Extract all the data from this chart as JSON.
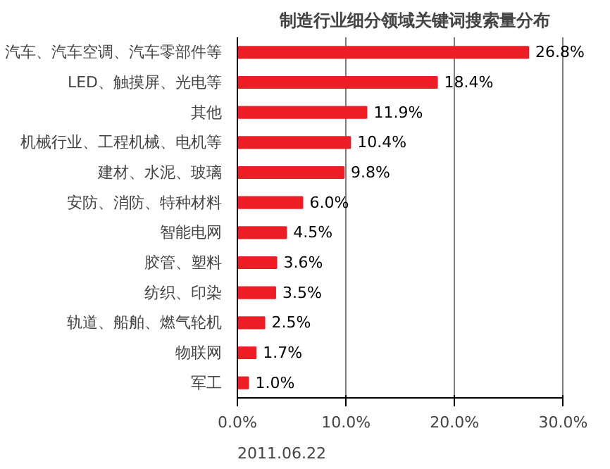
{
  "chart_data": {
    "type": "bar",
    "orientation": "horizontal",
    "title": "制造行业细分领域关键词搜索量分布",
    "categories": [
      "汽车、汽车空调、汽车零部件等",
      "LED、触摸屏、光电等",
      "其他",
      "机械行业、工程机械、电机等",
      "建材、水泥、玻璃",
      "安防、消防、特种材料",
      "智能电网",
      "胶管、塑料",
      "纺织、印染",
      "轨道、船舶、燃气轮机",
      "物联网",
      "军工"
    ],
    "values": [
      26.8,
      18.4,
      11.9,
      10.4,
      9.8,
      6.0,
      4.5,
      3.6,
      3.5,
      2.5,
      1.7,
      1.0
    ],
    "value_labels": [
      "26.8%",
      "18.4%",
      "11.9%",
      "10.4%",
      "9.8%",
      "6.0%",
      "4.5%",
      "3.6%",
      "3.5%",
      "2.5%",
      "1.7%",
      "1.0%"
    ],
    "color": "#ee1c24",
    "xlim": [
      0,
      30
    ],
    "xticks": [
      {
        "value": 0,
        "label": "0.0%"
      },
      {
        "value": 10,
        "label": "10.0%"
      },
      {
        "value": 20,
        "label": "20.0%"
      },
      {
        "value": 30,
        "label": "30.0%"
      }
    ],
    "grid": "x",
    "annotations": [
      "2011.06.22"
    ]
  }
}
